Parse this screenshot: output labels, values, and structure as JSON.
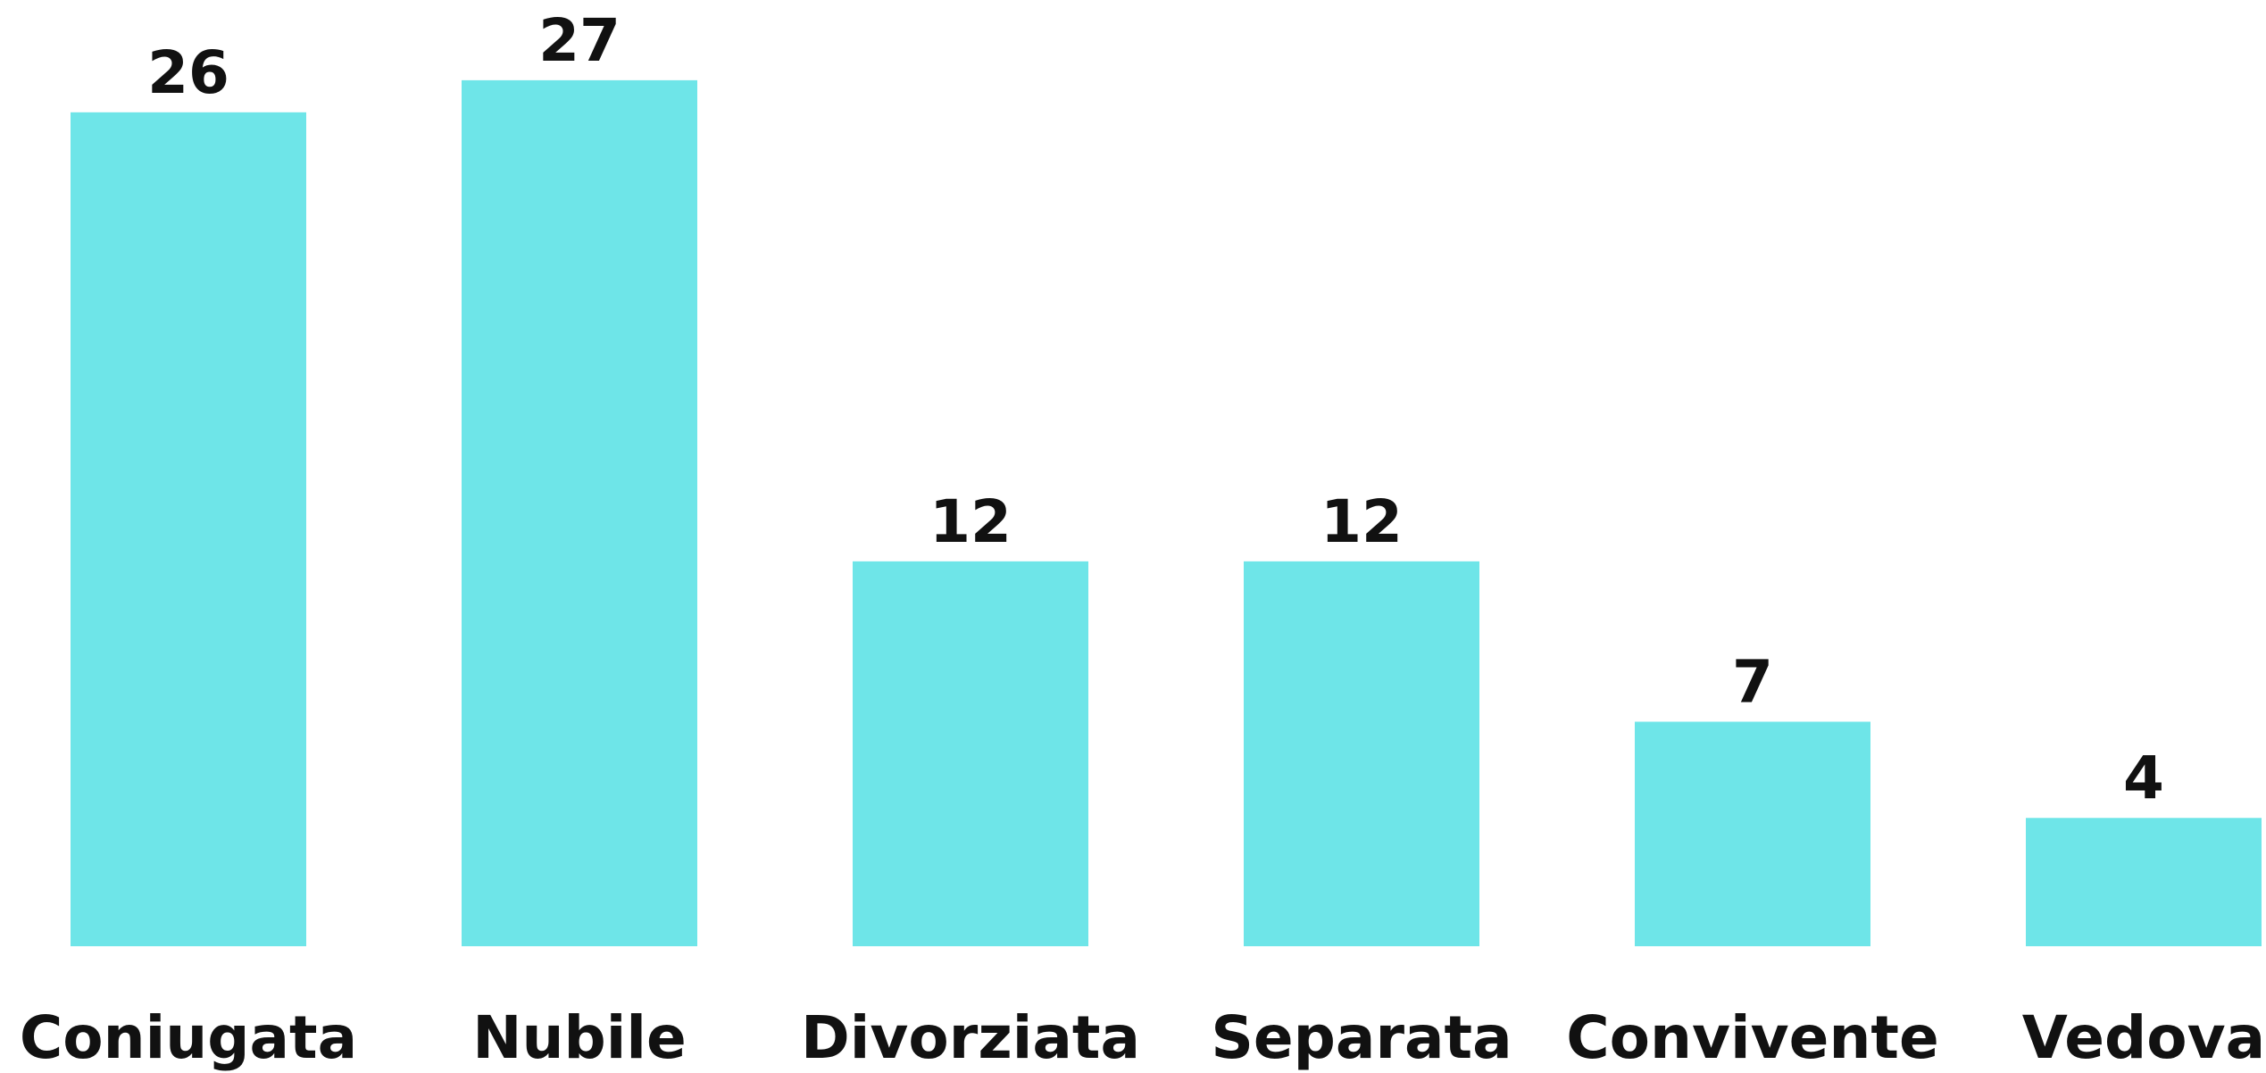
{
  "chart_data": {
    "type": "bar",
    "categories": [
      "Coniugata",
      "Nubile",
      "Divorziata",
      "Separata",
      "Convivente",
      "Vedova"
    ],
    "values": [
      26,
      27,
      12,
      12,
      7,
      4
    ],
    "color": "#6ee5e8"
  }
}
